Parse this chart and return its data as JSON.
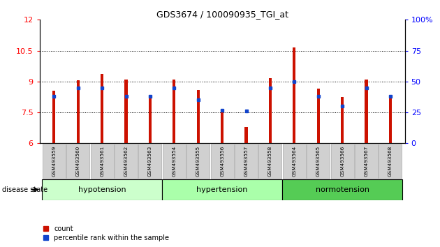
{
  "title": "GDS3674 / 100090935_TGI_at",
  "samples": [
    "GSM493559",
    "GSM493560",
    "GSM493561",
    "GSM493562",
    "GSM493563",
    "GSM493554",
    "GSM493555",
    "GSM493556",
    "GSM493557",
    "GSM493558",
    "GSM493564",
    "GSM493565",
    "GSM493566",
    "GSM493567",
    "GSM493568"
  ],
  "counts": [
    8.55,
    9.05,
    9.35,
    9.1,
    8.3,
    9.1,
    8.6,
    7.5,
    6.8,
    9.15,
    10.65,
    8.65,
    8.25,
    9.1,
    8.35
  ],
  "percentiles": [
    38,
    45,
    45,
    38,
    38,
    45,
    35,
    27,
    26,
    45,
    50,
    38,
    30,
    45,
    38
  ],
  "groups": [
    {
      "name": "hypotension",
      "start": 0,
      "end": 5,
      "color": "#ccffcc"
    },
    {
      "name": "hypertension",
      "start": 5,
      "end": 10,
      "color": "#aaffaa"
    },
    {
      "name": "normotension",
      "start": 10,
      "end": 15,
      "color": "#55cc55"
    }
  ],
  "bar_color": "#cc1100",
  "blue_color": "#1144cc",
  "ylim_left": [
    6,
    12
  ],
  "ylim_right": [
    0,
    100
  ],
  "yticks_left": [
    6,
    7.5,
    9,
    10.5,
    12
  ],
  "yticks_right": [
    0,
    25,
    50,
    75,
    100
  ],
  "background_color": "#ffffff",
  "plot_bg_color": "#ffffff",
  "bar_width": 0.12,
  "legend_count_label": "count",
  "legend_pct_label": "percentile rank within the sample",
  "disease_state_label": "disease state"
}
